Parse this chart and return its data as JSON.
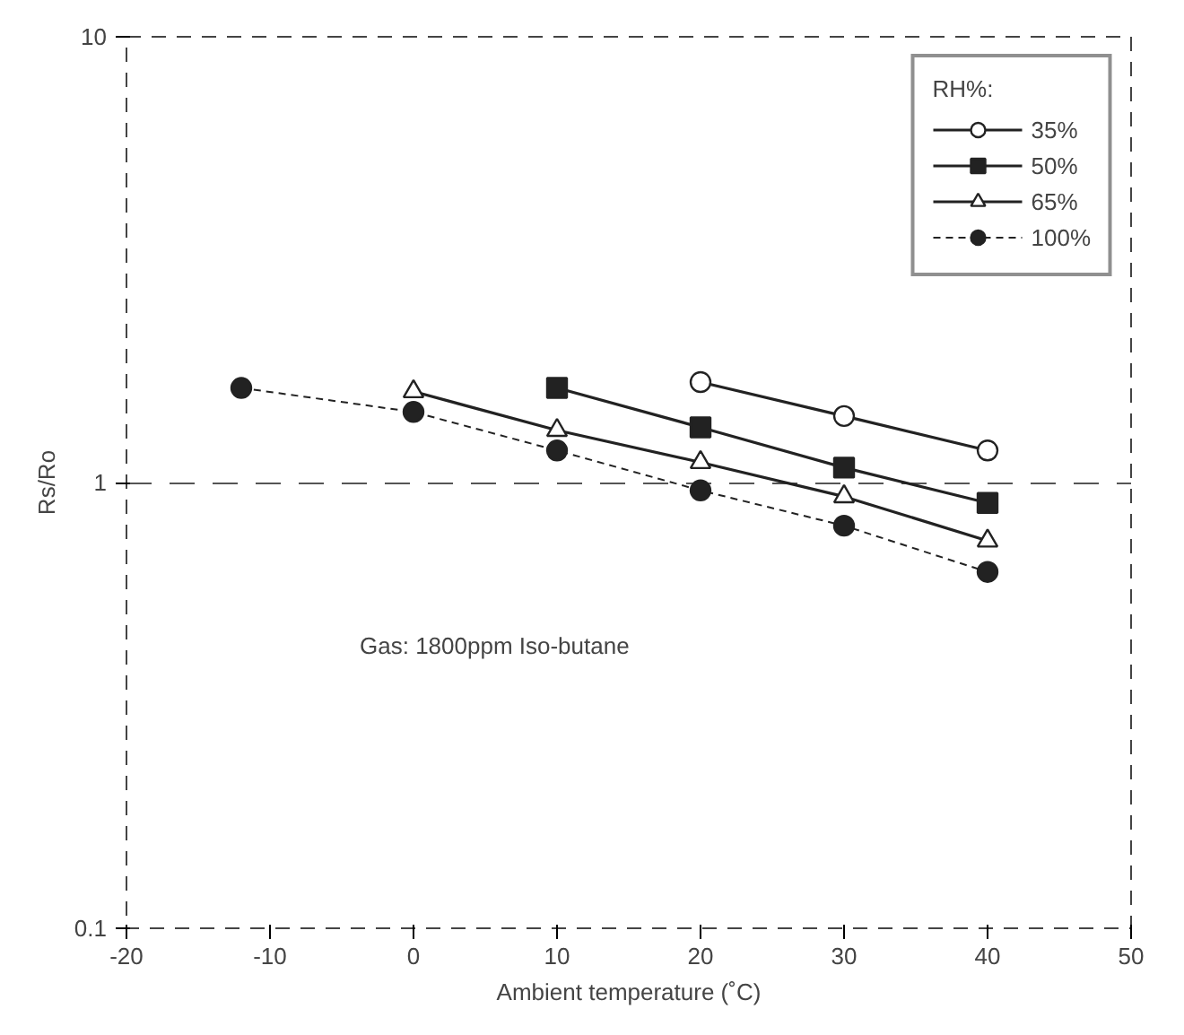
{
  "chart_data": {
    "type": "line",
    "xlabel": "Ambient temperature (˚C)",
    "ylabel": "Rs/Ro",
    "legend_title": "RH%:",
    "xlim": [
      -20,
      50
    ],
    "xticks": [
      -20,
      -10,
      0,
      10,
      20,
      30,
      40,
      50
    ],
    "ylim": [
      0.1,
      10
    ],
    "yticks": [
      0.1,
      1,
      10
    ],
    "log": true,
    "grid": "y",
    "legend": "top right",
    "annotations": [
      "Gas: 1800ppm Iso-butane"
    ],
    "series": [
      {
        "name": "35%",
        "color": "#222222",
        "marker": "circle_open",
        "line_style": "solid",
        "x": [
          20,
          30,
          40
        ],
        "values": [
          1.68,
          1.41,
          1.18
        ]
      },
      {
        "name": "50%",
        "color": "#222222",
        "marker": "square",
        "line_style": "solid",
        "x": [
          10,
          20,
          30,
          40
        ],
        "values": [
          1.63,
          1.33,
          1.08,
          0.9
        ]
      },
      {
        "name": "65%",
        "color": "#222222",
        "marker": "triangle_open",
        "line_style": "solid",
        "x": [
          0,
          10,
          20,
          30,
          40
        ],
        "values": [
          1.6,
          1.31,
          1.11,
          0.93,
          0.74
        ]
      },
      {
        "name": "100%",
        "color": "#222222",
        "marker": "circle",
        "line_style": "dashed",
        "x": [
          -12,
          0,
          10,
          20,
          30,
          40
        ],
        "values": [
          1.63,
          1.44,
          1.18,
          0.96,
          0.8,
          0.63
        ]
      }
    ]
  }
}
